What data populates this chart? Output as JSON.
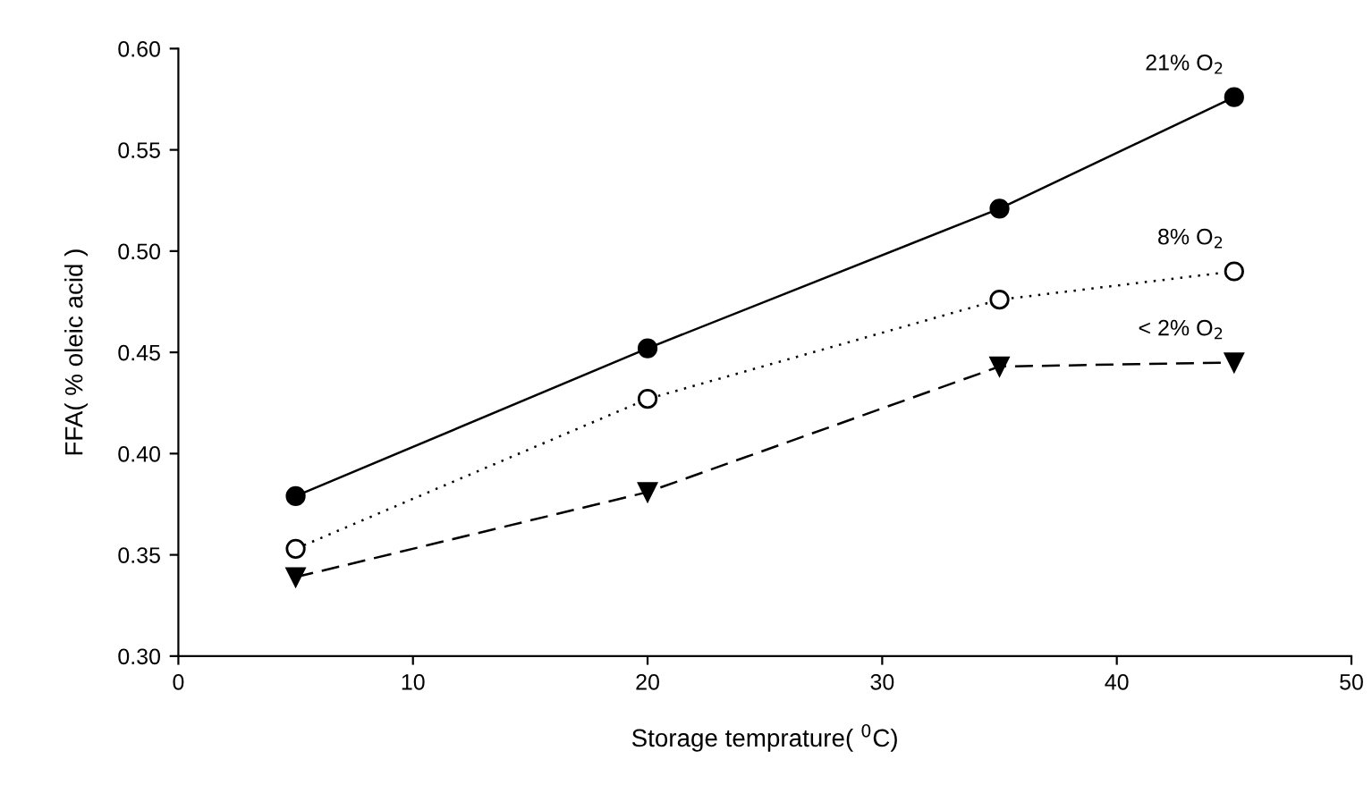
{
  "chart_data": {
    "type": "line",
    "xlabel": "Storage temprature( $^{0}$C)",
    "ylabel": "FFA( % oleic acid )",
    "x": [
      5,
      20,
      35,
      45
    ],
    "series": [
      {
        "name": "21% O$_{2}$",
        "color": "#000000",
        "values": [
          0.379,
          0.452,
          0.521,
          0.576
        ],
        "marker": "circle",
        "line_style": "solid"
      },
      {
        "name": "8% O$_{2}$",
        "color": "#000000",
        "values": [
          0.353,
          0.427,
          0.476,
          0.49
        ],
        "marker": "circle",
        "line_style": "dotted"
      },
      {
        "name": "< 2% O$_{2}$",
        "color": "#000000",
        "values": [
          0.339,
          0.381,
          0.443,
          0.445
        ],
        "marker": "triangle",
        "line_style": "dashed"
      }
    ],
    "xlim": [
      0,
      50
    ],
    "xticks": [
      0,
      10,
      20,
      30,
      40,
      50
    ],
    "ylim": [
      0.3,
      0.6
    ],
    "yticks": [
      {
        "value": 0.3,
        "label": "0.30"
      },
      0.35,
      {
        "value": 0.4,
        "label": "0.40"
      },
      0.45,
      {
        "value": 0.5,
        "label": "0.50"
      },
      0.55,
      {
        "value": 0.6,
        "label": "0.60"
      }
    ],
    "grid": false,
    "legend": false
  }
}
